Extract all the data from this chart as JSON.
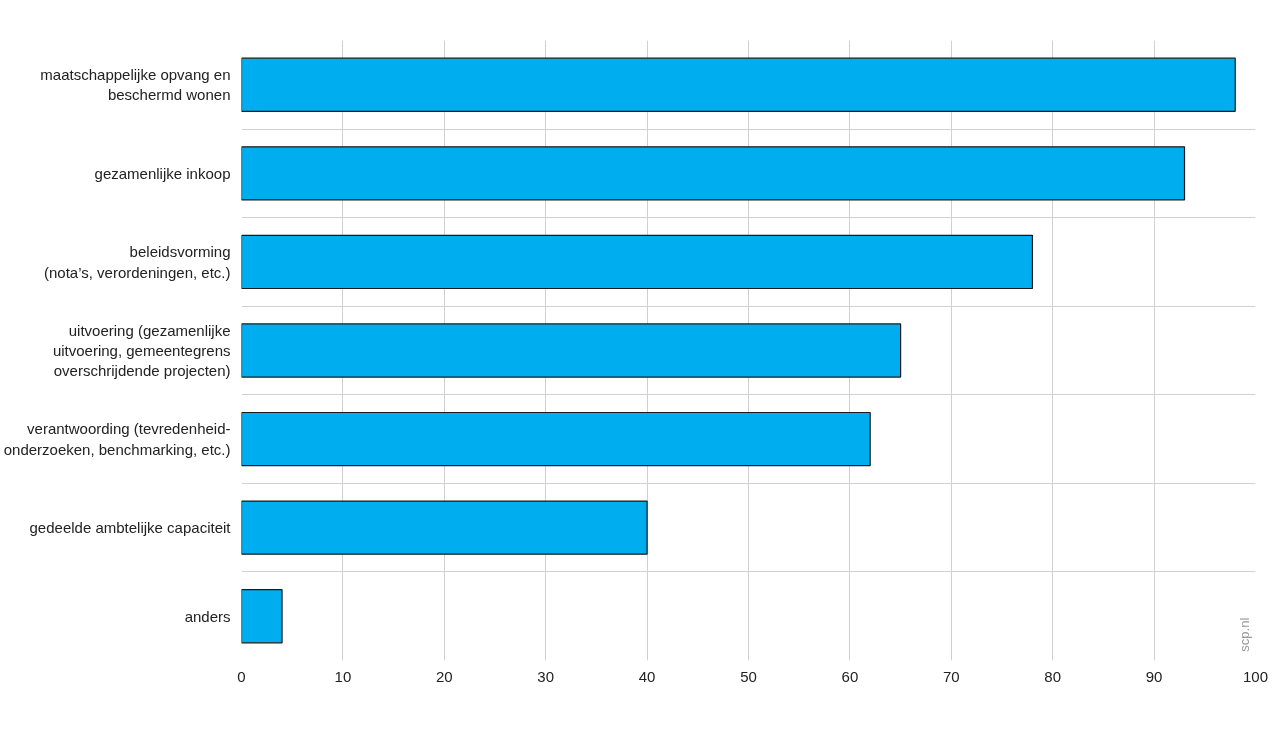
{
  "chart_data": {
    "type": "bar",
    "orientation": "horizontal",
    "categories": [
      "maatschappelijke opvang en\nbeschermd wonen",
      "gezamenlijke inkoop",
      "beleidsvorming\n(nota’s, verordeningen, etc.)",
      "uitvoering (gezamenlijke\nuitvoering, gemeentegrens\noverschrijdende projecten)",
      "verantwoording (tevredenheid-\nonderzoeken, benchmarking, etc.)",
      "gedeelde ambtelijke capaciteit",
      "anders"
    ],
    "values": [
      98,
      93,
      78,
      65,
      62,
      40,
      4
    ],
    "color": "#00aeef",
    "xlim": [
      0,
      100
    ],
    "xticks": [
      0,
      10,
      20,
      30,
      40,
      50,
      60,
      70,
      80,
      90,
      100
    ],
    "grid": true,
    "annotations": [
      "scp.nl"
    ]
  }
}
